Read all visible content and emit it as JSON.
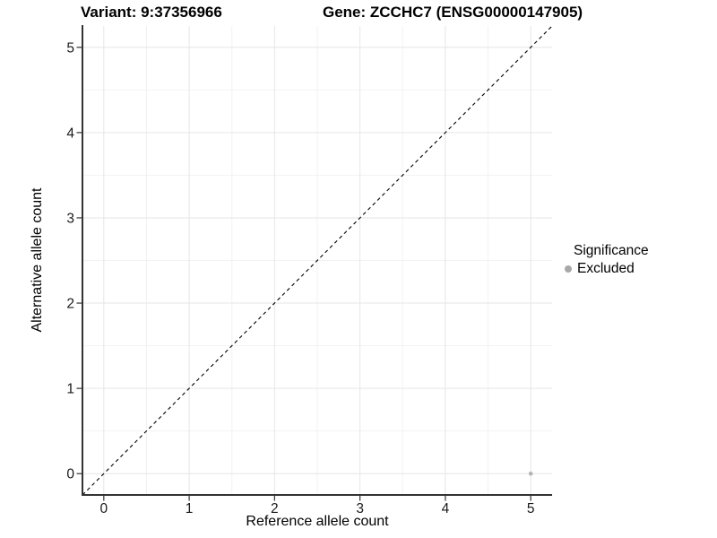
{
  "title": {
    "variant": "Variant: 9:37356966",
    "gene": "Gene: ZCCHC7 (ENSG00000147905)"
  },
  "chart_data": {
    "type": "scatter",
    "xlabel": "Reference allele count",
    "ylabel": "Alternative allele count",
    "xlim": [
      -0.25,
      5.25
    ],
    "ylim": [
      -0.25,
      5.25
    ],
    "x_ticks": [
      0,
      1,
      2,
      3,
      4,
      5
    ],
    "y_ticks": [
      0,
      1,
      2,
      3,
      4,
      5
    ],
    "x_minor_ticks": [
      0.5,
      1.5,
      2.5,
      3.5,
      4.5
    ],
    "y_minor_ticks": [
      0.5,
      1.5,
      2.5,
      3.5,
      4.5
    ],
    "grid": true,
    "reference_line": {
      "type": "identity",
      "style": "dashed",
      "from": [
        -0.25,
        -0.25
      ],
      "to": [
        5.25,
        5.25
      ],
      "color": "#000000"
    },
    "series": [
      {
        "name": "Excluded",
        "color": "#b4b4b4",
        "points": [
          {
            "x": 5,
            "y": 0
          }
        ]
      }
    ],
    "legend": {
      "title": "Significance",
      "position": "right",
      "entries": [
        {
          "label": "Excluded",
          "color": "#a8a8a8"
        }
      ]
    }
  },
  "colors": {
    "background": "#ffffff",
    "grid_major": "#e6e6e6",
    "grid_minor": "#f2f2f2",
    "axis_line": "#333333",
    "tick_text": "#1a1a1a",
    "title_text": "#000000",
    "point": "#b4b4b4",
    "legend_key": "#a8a8a8",
    "dashed_line": "#000000"
  }
}
